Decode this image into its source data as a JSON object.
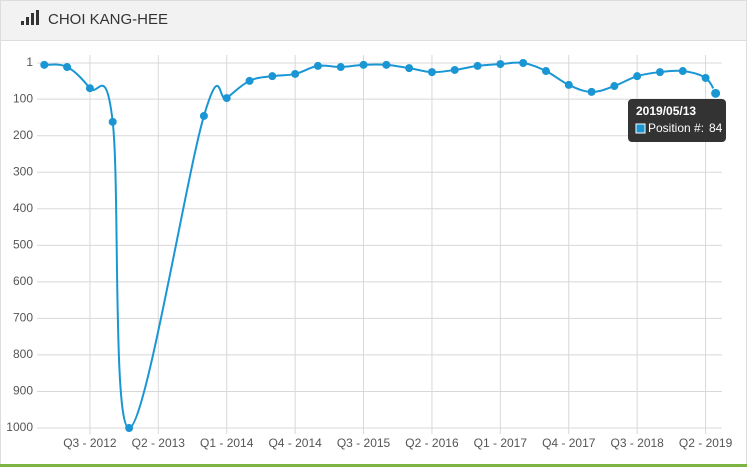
{
  "chart_data": {
    "type": "line",
    "title": "CHOI KANG-HEE",
    "x": [
      2012.0,
      2012.25,
      2012.5,
      2012.75,
      2012.93,
      2013.75,
      2014.0,
      2014.25,
      2014.5,
      2014.75,
      2015.0,
      2015.25,
      2015.5,
      2015.75,
      2016.0,
      2016.25,
      2016.5,
      2016.75,
      2017.0,
      2017.25,
      2017.5,
      2017.75,
      2018.0,
      2018.25,
      2018.5,
      2018.75,
      2019.0,
      2019.25,
      2019.36
    ],
    "values": [
      6,
      12,
      70,
      162,
      1000,
      146,
      97,
      50,
      37,
      31,
      9,
      12,
      6,
      6,
      15,
      26,
      20,
      9,
      4,
      1,
      23,
      61,
      80,
      64,
      37,
      26,
      23,
      42,
      84
    ],
    "color": "#1a96d4",
    "xlim": [
      2011.92,
      2019.43
    ],
    "xticks": [
      {
        "value": 2012.5,
        "label": "Q3 - 2012"
      },
      {
        "value": 2013.25,
        "label": "Q2 - 2013"
      },
      {
        "value": 2014.0,
        "label": "Q1 - 2014"
      },
      {
        "value": 2014.75,
        "label": "Q4 - 2014"
      },
      {
        "value": 2015.5,
        "label": "Q3 - 2015"
      },
      {
        "value": 2016.25,
        "label": "Q2 - 2016"
      },
      {
        "value": 2017.0,
        "label": "Q1 - 2017"
      },
      {
        "value": 2017.75,
        "label": "Q4 - 2017"
      },
      {
        "value": 2018.5,
        "label": "Q3 - 2018"
      },
      {
        "value": 2019.25,
        "label": "Q2 - 2019"
      }
    ],
    "ylim": [
      1,
      1000
    ],
    "y_inverted": true,
    "yticks": [
      1,
      100,
      200,
      300,
      400,
      500,
      600,
      700,
      800,
      900,
      1000
    ],
    "grid": true,
    "tooltip": {
      "date": "2019/05/13",
      "label": "Position #:"
    }
  }
}
